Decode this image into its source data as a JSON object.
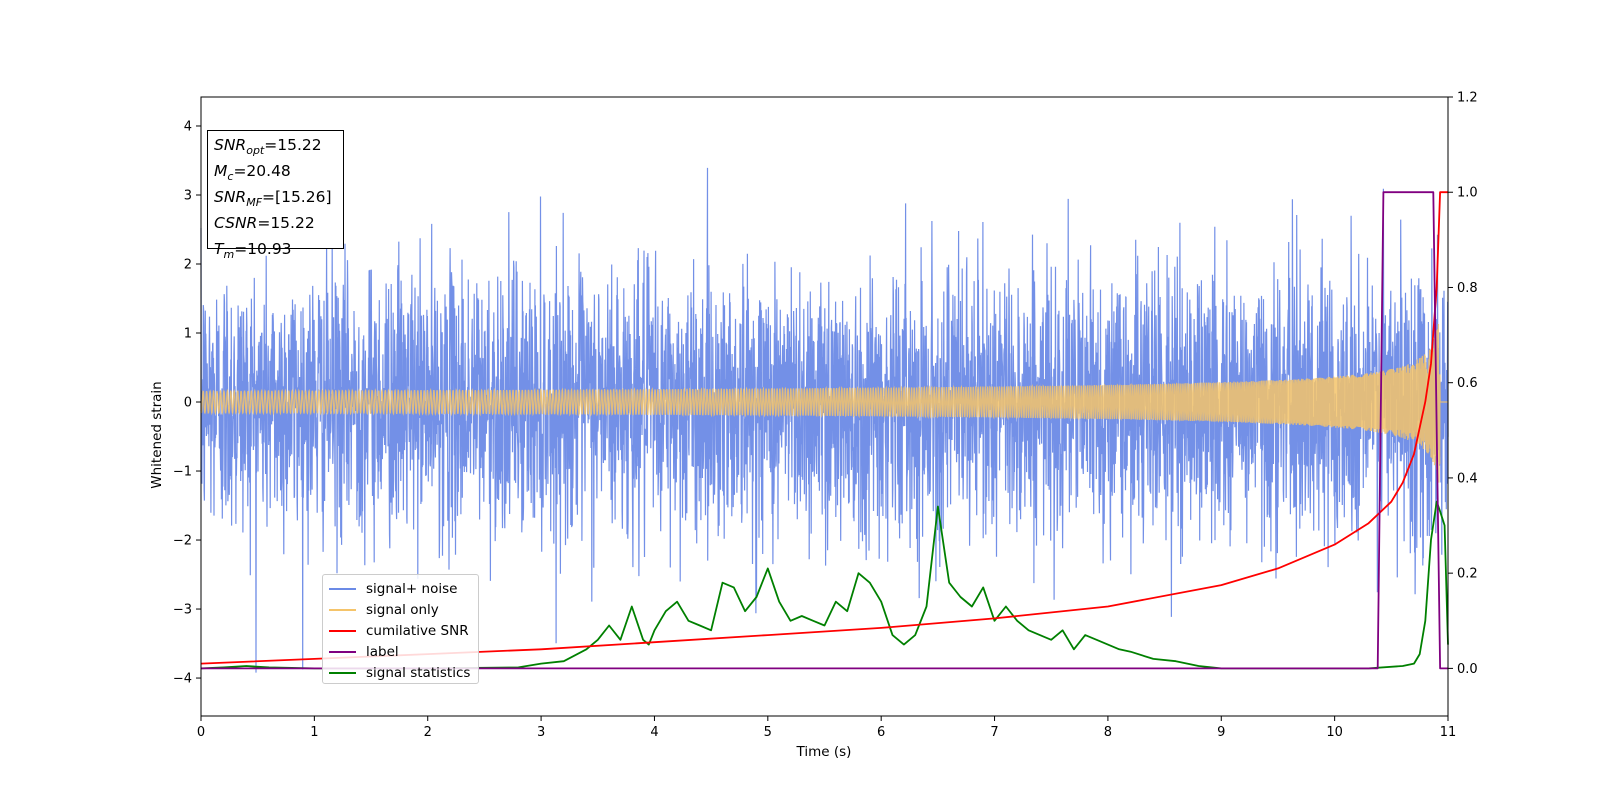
{
  "info_box": {
    "lines": [
      {
        "symbol": "SNR",
        "sub": "opt",
        "value": "=15.22"
      },
      {
        "symbol": "M",
        "sub": "c",
        "value": "=20.48"
      },
      {
        "symbol": "SNR",
        "sub": "MF",
        "value": "=[15.26]"
      },
      {
        "symbol": "CSNR",
        "sub": "",
        "value": "=15.22"
      },
      {
        "symbol": "T",
        "sub": "m",
        "value": "=10.93"
      }
    ]
  },
  "chart_data": {
    "type": "line",
    "title": "",
    "xlabel": "Time (s)",
    "ylabel": "Whitened strain",
    "y2label": "",
    "xlim": [
      0,
      11
    ],
    "ylim": [
      -4.55,
      4.42
    ],
    "y2lim": [
      -0.1,
      1.2
    ],
    "xticks": [
      "0",
      "1",
      "2",
      "3",
      "4",
      "5",
      "6",
      "7",
      "8",
      "9",
      "10",
      "11"
    ],
    "yticks": [
      "4",
      "3",
      "2",
      "1",
      "0",
      "−1",
      "−2",
      "−3",
      "−4"
    ],
    "y2ticks": [
      "1.2",
      "1.0",
      "0.8",
      "0.6",
      "0.4",
      "0.2",
      "0.0"
    ],
    "legend_position": "lower-left",
    "grid": false,
    "series": [
      {
        "name": "signal+ noise",
        "color": "#6b8ae6",
        "axis": "left",
        "description": "whitened noise with injected chirp, amplitude roughly between -3.5 and 4.0"
      },
      {
        "name": "signal only",
        "color": "#f5c46a",
        "axis": "left",
        "description": "chirp signal growing to amplitude about 1.3 at t = 10.93",
        "merger_time": 10.93,
        "peak_amplitude": 1.3
      },
      {
        "name": "cumilative SNR",
        "color": "#ff0000",
        "axis": "right",
        "x": [
          0,
          1,
          2,
          3,
          4,
          5,
          6,
          7,
          8,
          9,
          9.5,
          10,
          10.3,
          10.5,
          10.6,
          10.7,
          10.8,
          10.85,
          10.9,
          10.93,
          11
        ],
        "y": [
          0.01,
          0.02,
          0.03,
          0.04,
          0.055,
          0.07,
          0.085,
          0.105,
          0.13,
          0.175,
          0.21,
          0.26,
          0.305,
          0.35,
          0.39,
          0.45,
          0.56,
          0.64,
          0.8,
          1.0,
          1.0
        ]
      },
      {
        "name": "label",
        "color": "#800080",
        "axis": "right",
        "x": [
          0,
          10.38,
          10.43,
          10.87,
          10.93,
          11
        ],
        "y": [
          0,
          0,
          1,
          1,
          0,
          0
        ]
      },
      {
        "name": "signal statistics",
        "color": "#008000",
        "axis": "right",
        "x": [
          0,
          0.2,
          0.4,
          0.6,
          1,
          2,
          2.8,
          3,
          3.2,
          3.4,
          3.5,
          3.6,
          3.7,
          3.8,
          3.9,
          3.95,
          4,
          4.1,
          4.2,
          4.3,
          4.4,
          4.5,
          4.6,
          4.7,
          4.8,
          4.9,
          5,
          5.1,
          5.2,
          5.3,
          5.4,
          5.5,
          5.6,
          5.7,
          5.8,
          5.9,
          6.0,
          6.1,
          6.2,
          6.3,
          6.4,
          6.5,
          6.6,
          6.7,
          6.8,
          6.9,
          7.0,
          7.1,
          7.2,
          7.3,
          7.4,
          7.5,
          7.6,
          7.7,
          7.8,
          7.9,
          8.0,
          8.1,
          8.2,
          8.4,
          8.6,
          8.8,
          9,
          9.5,
          10,
          10.3,
          10.6,
          10.7,
          10.75,
          10.8,
          10.85,
          10.9,
          10.93,
          10.97,
          11
        ],
        "y": [
          0.0,
          0.002,
          0.005,
          0.002,
          0.0,
          0.0,
          0.002,
          0.01,
          0.015,
          0.04,
          0.06,
          0.09,
          0.06,
          0.13,
          0.06,
          0.05,
          0.08,
          0.12,
          0.14,
          0.1,
          0.09,
          0.08,
          0.18,
          0.17,
          0.12,
          0.15,
          0.21,
          0.14,
          0.1,
          0.11,
          0.1,
          0.09,
          0.14,
          0.12,
          0.2,
          0.18,
          0.14,
          0.07,
          0.05,
          0.07,
          0.13,
          0.34,
          0.18,
          0.15,
          0.13,
          0.17,
          0.1,
          0.13,
          0.1,
          0.08,
          0.07,
          0.06,
          0.08,
          0.04,
          0.07,
          0.06,
          0.05,
          0.04,
          0.035,
          0.02,
          0.015,
          0.005,
          0.0,
          0.0,
          0.0,
          0.0,
          0.005,
          0.01,
          0.03,
          0.1,
          0.27,
          0.35,
          0.33,
          0.3,
          0.05
        ]
      }
    ]
  }
}
